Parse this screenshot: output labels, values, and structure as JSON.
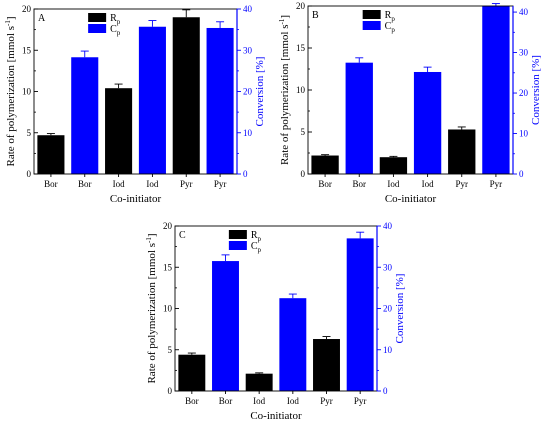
{
  "chart_data": [
    {
      "type": "bar",
      "panel_label": "A",
      "categories": [
        "Bor",
        "Bor",
        "Iod",
        "Iod",
        "Pyr",
        "Pyr"
      ],
      "series": [
        {
          "name": "Rp",
          "axis": "left",
          "color": "#000000",
          "positions": [
            0,
            2,
            4
          ],
          "values": [
            4.7,
            10.4,
            19.0
          ],
          "errors": [
            0.2,
            0.5,
            0.9
          ]
        },
        {
          "name": "Cp",
          "axis": "right",
          "color": "#0000ff",
          "positions": [
            1,
            3,
            5
          ],
          "values": [
            28.3,
            35.7,
            35.4
          ],
          "errors": [
            1.5,
            1.5,
            1.5
          ]
        }
      ],
      "ylabel": "Rate of polymerization [mmol s-1]",
      "ylabel_main": "Rate of polymerization [mmol s",
      "ylabel_sup": "-1",
      "ylabel_end": "]",
      "y2label": "Conversion [%]",
      "xlabel": "Co-initiator",
      "ylim": [
        0,
        20
      ],
      "y2lim": [
        0,
        40
      ],
      "yticks": [
        0,
        5,
        10,
        15,
        20
      ],
      "y2ticks": [
        0,
        10,
        20,
        30,
        40
      ],
      "legend": [
        "R",
        "C"
      ],
      "legend_sub": [
        "p",
        "p"
      ],
      "legend_placement": "top-left"
    },
    {
      "type": "bar",
      "panel_label": "B",
      "categories": [
        "Bor",
        "Bor",
        "Iod",
        "Iod",
        "Pyr",
        "Pyr"
      ],
      "series": [
        {
          "name": "Rp",
          "axis": "left",
          "color": "#000000",
          "positions": [
            0,
            2,
            4
          ],
          "values": [
            2.2,
            2.0,
            5.3
          ],
          "errors": [
            0.1,
            0.1,
            0.3
          ]
        },
        {
          "name": "Cp",
          "axis": "right",
          "color": "#0000ff",
          "positions": [
            1,
            3,
            5
          ],
          "values": [
            27.5,
            25.2,
            41.5
          ],
          "errors": [
            1.2,
            1.2,
            0.6
          ]
        }
      ],
      "ylabel": "Rate of polymerization [mmol s-1]",
      "ylabel_main": "Rate of polymerization [mmol s",
      "ylabel_sup": "-1",
      "ylabel_end": "]",
      "y2label": "Conversion [%]",
      "xlabel": "Co-initiator",
      "ylim": [
        0,
        20
      ],
      "y2lim": [
        0,
        41.5
      ],
      "yticks": [
        0,
        5,
        10,
        15,
        20
      ],
      "y2ticks": [
        0,
        10,
        20,
        30,
        40
      ],
      "legend": [
        "R",
        "C"
      ],
      "legend_sub": [
        "p",
        "p"
      ],
      "legend_placement": "top-left"
    },
    {
      "type": "bar",
      "panel_label": "C",
      "categories": [
        "Bor",
        "Bor",
        "Iod",
        "Iod",
        "Pyr",
        "Pyr"
      ],
      "series": [
        {
          "name": "Rp",
          "axis": "left",
          "color": "#000000",
          "positions": [
            0,
            2,
            4
          ],
          "values": [
            4.4,
            2.1,
            6.3
          ],
          "errors": [
            0.2,
            0.1,
            0.3
          ]
        },
        {
          "name": "Cp",
          "axis": "right",
          "color": "#0000ff",
          "positions": [
            1,
            3,
            5
          ],
          "values": [
            31.5,
            22.5,
            37.0
          ],
          "errors": [
            1.5,
            1.0,
            1.5
          ]
        }
      ],
      "ylabel": "Rate of polymerization [mmol s-1]",
      "ylabel_main": "Rate of polymerization [mmol s",
      "ylabel_sup": "-1",
      "ylabel_end": "]",
      "y2label": "Conversion [%]",
      "xlabel": "Co-initiator",
      "ylim": [
        0,
        20
      ],
      "y2lim": [
        0,
        40
      ],
      "yticks": [
        0,
        5,
        10,
        15,
        20
      ],
      "y2ticks": [
        0,
        10,
        20,
        30,
        40
      ],
      "legend": [
        "R",
        "C"
      ],
      "legend_sub": [
        "p",
        "p"
      ],
      "legend_placement": "top-left"
    }
  ]
}
